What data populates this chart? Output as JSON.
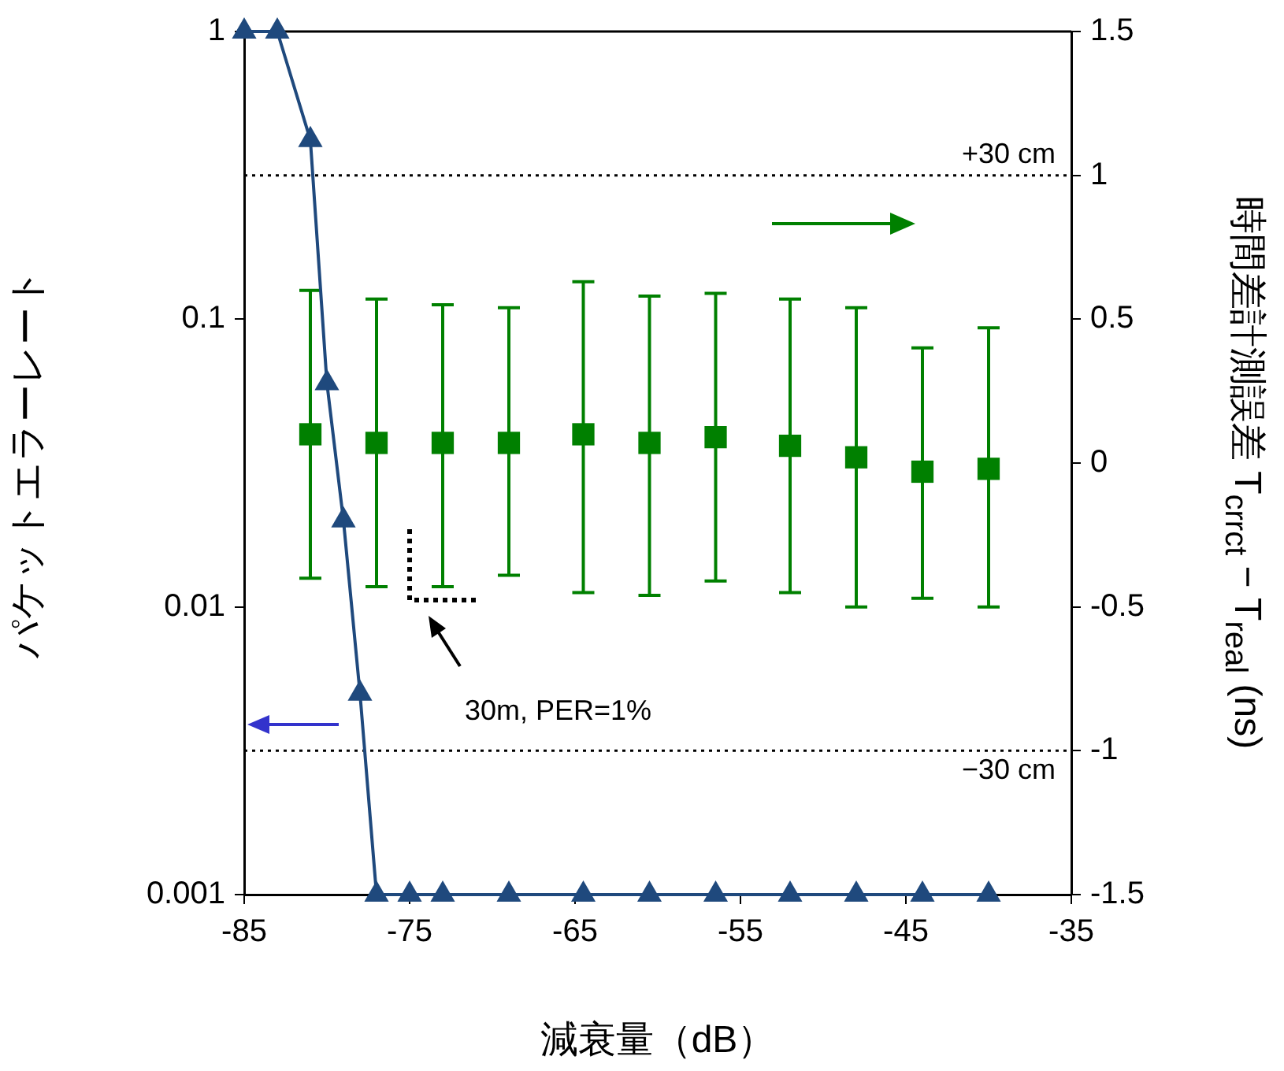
{
  "chart_data": {
    "type": "line",
    "xlabel": "減衰量（dB）",
    "ylabel": "パケットエラーレート",
    "y2label": "時間差計測誤差  T$_{crrct}$ − T$_{real}$ (ns)",
    "xlim": [
      -85,
      -35
    ],
    "xticks": [
      -85,
      -75,
      -65,
      -55,
      -45,
      -35
    ],
    "ylim": [
      0.001,
      1
    ],
    "yticks": [
      0.001,
      0.01,
      0.1,
      1
    ],
    "log": "y",
    "y2lim": [
      -1.5,
      1.5
    ],
    "y2ticks": [
      -1.5,
      -1,
      -0.5,
      0,
      0.5,
      1,
      1.5
    ],
    "grid": false,
    "legend": false,
    "series": [
      {
        "color": "#1f497d",
        "marker": "triangle",
        "x": [
          -85,
          -83,
          -81,
          -80,
          -79,
          -78,
          -77,
          -75,
          -73,
          -69,
          -64.5,
          -60.5,
          -56.5,
          -52,
          -48,
          -44,
          -40
        ],
        "values": [
          1,
          1,
          0.42,
          0.06,
          0.02,
          0.005,
          0.001,
          0.001,
          0.001,
          0.001,
          0.001,
          0.001,
          0.001,
          0.001,
          0.001,
          0.001,
          0.001
        ]
      },
      {
        "type": "scatter",
        "axis": "y2",
        "color": "#008000",
        "marker": "square",
        "x": [
          -81,
          -77,
          -73,
          -69,
          -64.5,
          -60.5,
          -56.5,
          -52,
          -48,
          -44,
          -40
        ],
        "values": [
          0.1,
          0.07,
          0.07,
          0.07,
          0.1,
          0.07,
          0.09,
          0.06,
          0.02,
          -0.03,
          -0.02
        ],
        "errors": [
          [
            -0.4,
            0.6
          ],
          [
            -0.43,
            0.57
          ],
          [
            -0.43,
            0.55
          ],
          [
            -0.39,
            0.54
          ],
          [
            -0.45,
            0.63
          ],
          [
            -0.46,
            0.58
          ],
          [
            -0.41,
            0.59
          ],
          [
            -0.45,
            0.57
          ],
          [
            -0.5,
            0.54
          ],
          [
            -0.47,
            0.4
          ],
          [
            -0.5,
            0.47
          ]
        ]
      }
    ],
    "ref_lines": [
      {
        "axis": "y2",
        "value": 1,
        "label": "+30 cm",
        "color": "#000000",
        "line_style": "dotted"
      },
      {
        "axis": "y2",
        "value": -1,
        "label": "−30 cm",
        "color": "#000000",
        "line_style": "dotted"
      }
    ],
    "annotations": [
      "30m, PER=1%"
    ]
  }
}
